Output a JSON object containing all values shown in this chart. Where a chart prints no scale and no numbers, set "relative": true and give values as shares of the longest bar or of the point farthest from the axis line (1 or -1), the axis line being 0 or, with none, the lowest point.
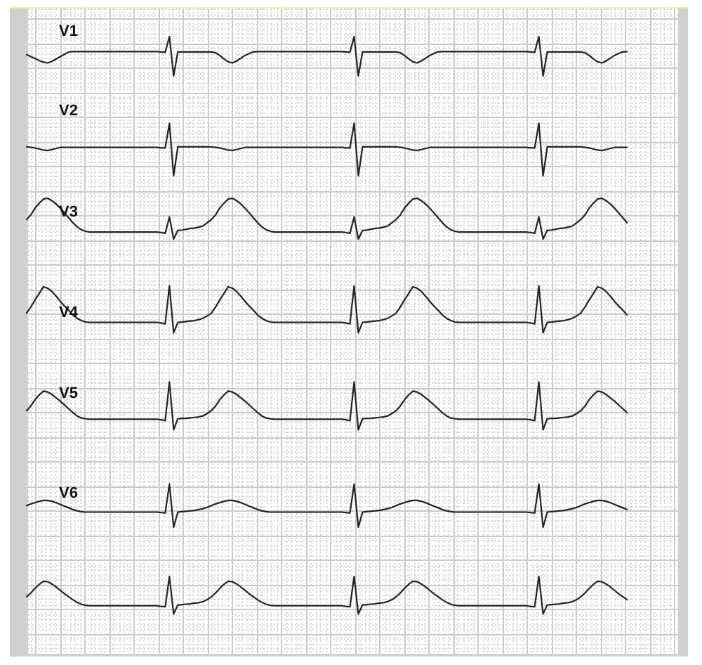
{
  "chart_data": [
    {
      "type": "line",
      "title": "V1",
      "relative": true,
      "grid": true,
      "categories": [
        null,
        null,
        null,
        null,
        null,
        null,
        null,
        null,
        null,
        null,
        null,
        null,
        null,
        null,
        null,
        null,
        null,
        null,
        null,
        null,
        null,
        null,
        null,
        null,
        null,
        null,
        null,
        null,
        null,
        null,
        null,
        null,
        null,
        null,
        null,
        null,
        null,
        null,
        null,
        null,
        null,
        null,
        null,
        null,
        null,
        null,
        null,
        null,
        null,
        null,
        null,
        null,
        null,
        null,
        null,
        null,
        null,
        null,
        null,
        null,
        null,
        null,
        null,
        null,
        null,
        null,
        null,
        null,
        null,
        null,
        null,
        null,
        null,
        null,
        null,
        null,
        null,
        null,
        null,
        null,
        null,
        null,
        null,
        null,
        null,
        null,
        null,
        null,
        null,
        null,
        null,
        null,
        null,
        null,
        null,
        null,
        null,
        null,
        null,
        null,
        null,
        null,
        null,
        null,
        null,
        null,
        null,
        null,
        null,
        null,
        null,
        null,
        null,
        null,
        null,
        null,
        null,
        null,
        null,
        null,
        null,
        null,
        null,
        null,
        null,
        null,
        null,
        null,
        null,
        null,
        null,
        null,
        null,
        null,
        null,
        null,
        null,
        null,
        null,
        null,
        null,
        null,
        null,
        null
      ],
      "series": [
        {
          "color": "#222222",
          "values": [
            0.54,
            0.49,
            0.44,
            0.39,
            0.35,
            0.33,
            0.37,
            0.43,
            0.49,
            0.55,
            0.61,
            0.62,
            0.62,
            0.62,
            0.62,
            0.62,
            0.62,
            0.62,
            0.62,
            0.62,
            0.62,
            0.62,
            0.62,
            0.62,
            0.62,
            0.62,
            0.62,
            0.62,
            0.62,
            0.62,
            0.62,
            0.62,
            0.61,
            0.6,
            1,
            0,
            0.61,
            0.61,
            0.61,
            0.61,
            0.61,
            0.61,
            0.61,
            0.61,
            0.61,
            0.59,
            0.52,
            0.43,
            0.36,
            0.33,
            0.38,
            0.45,
            0.52,
            0.57,
            0.61,
            0.62,
            0.62,
            0.62,
            0.62,
            0.62,
            0.62,
            0.62,
            0.62,
            0.62,
            0.62,
            0.62,
            0.62,
            0.62,
            0.62,
            0.62,
            0.62,
            0.62,
            0.62,
            0.62,
            0.62,
            0.62,
            0.61,
            0.6,
            1,
            0,
            0.61,
            0.61,
            0.61,
            0.61,
            0.61,
            0.61,
            0.61,
            0.61,
            0.61,
            0.59,
            0.52,
            0.43,
            0.36,
            0.33,
            0.38,
            0.45,
            0.52,
            0.57,
            0.61,
            0.62,
            0.62,
            0.62,
            0.62,
            0.62,
            0.62,
            0.62,
            0.62,
            0.62,
            0.62,
            0.62,
            0.62,
            0.62,
            0.62,
            0.62,
            0.62,
            0.62,
            0.62,
            0.62,
            0.62,
            0.62,
            0.61,
            0.6,
            1,
            0,
            0.61,
            0.61,
            0.61,
            0.61,
            0.61,
            0.61,
            0.61,
            0.61,
            0.61,
            0.59,
            0.52,
            0.43,
            0.36,
            0.33,
            0.38,
            0.45,
            0.52,
            0.57,
            0.61,
            0.62
          ]
        }
      ]
    },
    {
      "type": "line",
      "title": "V2",
      "relative": true,
      "grid": true,
      "categories": [
        null,
        null,
        null,
        null,
        null,
        null,
        null,
        null,
        null,
        null,
        null,
        null,
        null,
        null,
        null,
        null,
        null,
        null,
        null,
        null,
        null,
        null,
        null,
        null,
        null,
        null,
        null,
        null,
        null,
        null,
        null,
        null,
        null,
        null,
        null,
        null,
        null,
        null,
        null,
        null,
        null,
        null,
        null,
        null,
        null,
        null,
        null,
        null,
        null,
        null,
        null,
        null,
        null,
        null,
        null,
        null,
        null,
        null,
        null,
        null,
        null,
        null,
        null,
        null,
        null,
        null,
        null,
        null,
        null,
        null,
        null,
        null,
        null,
        null,
        null,
        null,
        null,
        null,
        null,
        null,
        null,
        null,
        null,
        null,
        null,
        null,
        null,
        null,
        null,
        null,
        null,
        null,
        null,
        null,
        null,
        null,
        null,
        null,
        null,
        null,
        null,
        null,
        null,
        null,
        null,
        null,
        null,
        null,
        null,
        null,
        null,
        null,
        null,
        null,
        null,
        null,
        null,
        null,
        null,
        null,
        null,
        null,
        null,
        null,
        null,
        null,
        null,
        null,
        null,
        null,
        null,
        null,
        null,
        null,
        null,
        null,
        null,
        null,
        null,
        null,
        null,
        null,
        null,
        null
      ],
      "series": [
        {
          "color": "#222222",
          "values": [
            0.55,
            0.54,
            0.53,
            0.51,
            0.49,
            0.48,
            0.5,
            0.52,
            0.54,
            0.54,
            0.54,
            0.54,
            0.54,
            0.54,
            0.54,
            0.54,
            0.54,
            0.54,
            0.54,
            0.54,
            0.54,
            0.54,
            0.54,
            0.54,
            0.54,
            0.54,
            0.54,
            0.54,
            0.54,
            0.54,
            0.54,
            0.54,
            0.53,
            0.53,
            1,
            0,
            0.55,
            0.55,
            0.55,
            0.55,
            0.55,
            0.55,
            0.55,
            0.55,
            0.55,
            0.54,
            0.53,
            0.51,
            0.49,
            0.48,
            0.5,
            0.52,
            0.54,
            0.54,
            0.54,
            0.54,
            0.54,
            0.54,
            0.54,
            0.54,
            0.54,
            0.54,
            0.54,
            0.54,
            0.54,
            0.54,
            0.54,
            0.54,
            0.54,
            0.54,
            0.54,
            0.54,
            0.54,
            0.54,
            0.54,
            0.54,
            0.53,
            0.53,
            1,
            0,
            0.55,
            0.55,
            0.55,
            0.55,
            0.55,
            0.55,
            0.55,
            0.55,
            0.55,
            0.54,
            0.53,
            0.51,
            0.49,
            0.48,
            0.5,
            0.52,
            0.54,
            0.54,
            0.54,
            0.54,
            0.54,
            0.54,
            0.54,
            0.54,
            0.54,
            0.54,
            0.54,
            0.54,
            0.54,
            0.54,
            0.54,
            0.54,
            0.54,
            0.54,
            0.54,
            0.54,
            0.54,
            0.54,
            0.54,
            0.54,
            0.53,
            0.53,
            1,
            0,
            0.55,
            0.55,
            0.55,
            0.55,
            0.55,
            0.55,
            0.55,
            0.55,
            0.55,
            0.54,
            0.53,
            0.51,
            0.49,
            0.48,
            0.5,
            0.52,
            0.54,
            0.54,
            0.54,
            0.54
          ]
        }
      ]
    },
    {
      "type": "line",
      "title": "V3",
      "relative": true,
      "grid": true,
      "categories": [
        null,
        null,
        null,
        null,
        null,
        null,
        null,
        null,
        null,
        null,
        null,
        null,
        null,
        null,
        null,
        null,
        null,
        null,
        null,
        null,
        null,
        null,
        null,
        null,
        null,
        null,
        null,
        null,
        null,
        null,
        null,
        null,
        null,
        null,
        null,
        null,
        null,
        null,
        null,
        null,
        null,
        null,
        null,
        null,
        null,
        null,
        null,
        null,
        null,
        null,
        null,
        null,
        null,
        null,
        null,
        null,
        null,
        null,
        null,
        null,
        null,
        null,
        null,
        null,
        null,
        null,
        null,
        null,
        null,
        null,
        null,
        null,
        null,
        null,
        null,
        null,
        null,
        null,
        null,
        null,
        null,
        null,
        null,
        null,
        null,
        null,
        null,
        null,
        null,
        null,
        null,
        null,
        null,
        null,
        null,
        null,
        null,
        null,
        null,
        null,
        null,
        null,
        null,
        null,
        null,
        null,
        null,
        null,
        null,
        null,
        null,
        null,
        null,
        null,
        null,
        null,
        null,
        null,
        null,
        null,
        null,
        null,
        null,
        null,
        null,
        null,
        null,
        null,
        null,
        null,
        null,
        null,
        null,
        null,
        null,
        null,
        null,
        null,
        null,
        null,
        null,
        null,
        null,
        null
      ],
      "series": [
        {
          "color": "#222222",
          "values": [
            0.48,
            0.59,
            0.76,
            0.88,
            0.98,
            1,
            0.94,
            0.86,
            0.76,
            0.64,
            0.52,
            0.4,
            0.3,
            0.23,
            0.19,
            0.17,
            0.17,
            0.17,
            0.17,
            0.17,
            0.17,
            0.17,
            0.17,
            0.17,
            0.17,
            0.17,
            0.17,
            0.17,
            0.17,
            0.17,
            0.17,
            0.17,
            0.16,
            0.14,
            0.54,
            0,
            0.21,
            0.22,
            0.24,
            0.26,
            0.27,
            0.29,
            0.32,
            0.4,
            0.48,
            0.59,
            0.76,
            0.88,
            0.98,
            1,
            0.94,
            0.86,
            0.76,
            0.64,
            0.52,
            0.4,
            0.3,
            0.23,
            0.19,
            0.17,
            0.17,
            0.17,
            0.17,
            0.17,
            0.17,
            0.17,
            0.17,
            0.17,
            0.17,
            0.17,
            0.17,
            0.17,
            0.17,
            0.17,
            0.17,
            0.17,
            0.16,
            0.14,
            0.54,
            0,
            0.21,
            0.22,
            0.24,
            0.26,
            0.27,
            0.29,
            0.32,
            0.4,
            0.48,
            0.59,
            0.76,
            0.88,
            0.98,
            1,
            0.94,
            0.86,
            0.76,
            0.64,
            0.52,
            0.4,
            0.3,
            0.23,
            0.19,
            0.17,
            0.17,
            0.17,
            0.17,
            0.17,
            0.17,
            0.17,
            0.17,
            0.17,
            0.17,
            0.17,
            0.17,
            0.17,
            0.17,
            0.17,
            0.17,
            0.17,
            0.16,
            0.14,
            0.54,
            0,
            0.21,
            0.22,
            0.24,
            0.26,
            0.27,
            0.29,
            0.32,
            0.4,
            0.48,
            0.59,
            0.76,
            0.88,
            0.98,
            1,
            0.94,
            0.86,
            0.76,
            0.64,
            0.52,
            0.4
          ]
        }
      ]
    },
    {
      "type": "line",
      "title": "V4",
      "relative": true,
      "grid": true,
      "categories": [
        null,
        null,
        null,
        null,
        null,
        null,
        null,
        null,
        null,
        null,
        null,
        null,
        null,
        null,
        null,
        null,
        null,
        null,
        null,
        null,
        null,
        null,
        null,
        null,
        null,
        null,
        null,
        null,
        null,
        null,
        null,
        null,
        null,
        null,
        null,
        null,
        null,
        null,
        null,
        null,
        null,
        null,
        null,
        null,
        null,
        null,
        null,
        null,
        null,
        null,
        null,
        null,
        null,
        null,
        null,
        null,
        null,
        null,
        null,
        null,
        null,
        null,
        null,
        null,
        null,
        null,
        null,
        null,
        null,
        null,
        null,
        null,
        null,
        null,
        null,
        null,
        null,
        null,
        null,
        null,
        null,
        null,
        null,
        null,
        null,
        null,
        null,
        null,
        null,
        null,
        null,
        null,
        null,
        null,
        null,
        null,
        null,
        null,
        null,
        null,
        null,
        null,
        null,
        null,
        null,
        null,
        null,
        null,
        null,
        null,
        null,
        null,
        null,
        null,
        null,
        null,
        null,
        null,
        null,
        null,
        null,
        null,
        null,
        null,
        null,
        null,
        null,
        null,
        null,
        null,
        null,
        null,
        null,
        null,
        null,
        null,
        null,
        null,
        null,
        null,
        null,
        null,
        null,
        null
      ],
      "series": [
        {
          "color": "#222222",
          "values": [
            0.42,
            0.55,
            0.7,
            0.84,
            0.98,
            0.95,
            0.88,
            0.78,
            0.67,
            0.57,
            0.48,
            0.38,
            0.31,
            0.26,
            0.23,
            0.22,
            0.22,
            0.22,
            0.22,
            0.22,
            0.22,
            0.22,
            0.22,
            0.22,
            0.22,
            0.22,
            0.22,
            0.22,
            0.22,
            0.22,
            0.22,
            0.22,
            0.21,
            0.19,
            1,
            0,
            0.22,
            0.23,
            0.24,
            0.25,
            0.26,
            0.28,
            0.31,
            0.36,
            0.42,
            0.55,
            0.7,
            0.84,
            0.98,
            0.95,
            0.88,
            0.78,
            0.67,
            0.57,
            0.48,
            0.38,
            0.31,
            0.26,
            0.23,
            0.22,
            0.22,
            0.22,
            0.22,
            0.22,
            0.22,
            0.22,
            0.22,
            0.22,
            0.22,
            0.22,
            0.22,
            0.22,
            0.22,
            0.22,
            0.22,
            0.22,
            0.21,
            0.19,
            1,
            0,
            0.22,
            0.23,
            0.24,
            0.25,
            0.26,
            0.28,
            0.31,
            0.36,
            0.42,
            0.55,
            0.7,
            0.84,
            0.98,
            0.95,
            0.88,
            0.78,
            0.67,
            0.57,
            0.48,
            0.38,
            0.31,
            0.26,
            0.23,
            0.22,
            0.22,
            0.22,
            0.22,
            0.22,
            0.22,
            0.22,
            0.22,
            0.22,
            0.22,
            0.22,
            0.22,
            0.22,
            0.22,
            0.22,
            0.22,
            0.22,
            0.21,
            0.19,
            1,
            0,
            0.22,
            0.23,
            0.24,
            0.25,
            0.26,
            0.28,
            0.31,
            0.36,
            0.42,
            0.55,
            0.7,
            0.84,
            0.98,
            0.95,
            0.88,
            0.78,
            0.67,
            0.57,
            0.48,
            0.38
          ]
        }
      ]
    },
    {
      "type": "line",
      "title": "V5",
      "relative": true,
      "grid": true,
      "categories": [
        null,
        null,
        null,
        null,
        null,
        null,
        null,
        null,
        null,
        null,
        null,
        null,
        null,
        null,
        null,
        null,
        null,
        null,
        null,
        null,
        null,
        null,
        null,
        null,
        null,
        null,
        null,
        null,
        null,
        null,
        null,
        null,
        null,
        null,
        null,
        null,
        null,
        null,
        null,
        null,
        null,
        null,
        null,
        null,
        null,
        null,
        null,
        null,
        null,
        null,
        null,
        null,
        null,
        null,
        null,
        null,
        null,
        null,
        null,
        null,
        null,
        null,
        null,
        null,
        null,
        null,
        null,
        null,
        null,
        null,
        null,
        null,
        null,
        null,
        null,
        null,
        null,
        null,
        null,
        null,
        null,
        null,
        null,
        null,
        null,
        null,
        null,
        null,
        null,
        null,
        null,
        null,
        null,
        null,
        null,
        null,
        null,
        null,
        null,
        null,
        null,
        null,
        null,
        null,
        null,
        null,
        null,
        null,
        null,
        null,
        null,
        null,
        null,
        null,
        null,
        null,
        null,
        null,
        null,
        null,
        null,
        null,
        null,
        null,
        null,
        null,
        null,
        null,
        null,
        null,
        null,
        null,
        null,
        null,
        null,
        null,
        null,
        null,
        null,
        null,
        null,
        null,
        null,
        null
      ],
      "series": [
        {
          "color": "#222222",
          "values": [
            0.4,
            0.5,
            0.63,
            0.73,
            0.81,
            0.79,
            0.74,
            0.67,
            0.6,
            0.52,
            0.44,
            0.36,
            0.29,
            0.25,
            0.23,
            0.22,
            0.22,
            0.22,
            0.22,
            0.22,
            0.22,
            0.22,
            0.22,
            0.22,
            0.22,
            0.22,
            0.22,
            0.22,
            0.22,
            0.22,
            0.22,
            0.22,
            0.21,
            0.19,
            1,
            0,
            0.23,
            0.24,
            0.24,
            0.25,
            0.26,
            0.27,
            0.29,
            0.34,
            0.4,
            0.5,
            0.63,
            0.73,
            0.81,
            0.79,
            0.74,
            0.67,
            0.6,
            0.52,
            0.44,
            0.36,
            0.29,
            0.25,
            0.23,
            0.22,
            0.22,
            0.22,
            0.22,
            0.22,
            0.22,
            0.22,
            0.22,
            0.22,
            0.22,
            0.22,
            0.22,
            0.22,
            0.22,
            0.22,
            0.22,
            0.22,
            0.21,
            0.19,
            1,
            0,
            0.23,
            0.24,
            0.24,
            0.25,
            0.26,
            0.27,
            0.29,
            0.34,
            0.4,
            0.5,
            0.63,
            0.73,
            0.81,
            0.79,
            0.74,
            0.67,
            0.6,
            0.52,
            0.44,
            0.36,
            0.29,
            0.25,
            0.23,
            0.22,
            0.22,
            0.22,
            0.22,
            0.22,
            0.22,
            0.22,
            0.22,
            0.22,
            0.22,
            0.22,
            0.22,
            0.22,
            0.22,
            0.22,
            0.22,
            0.22,
            0.21,
            0.19,
            1,
            0,
            0.23,
            0.24,
            0.24,
            0.25,
            0.26,
            0.27,
            0.29,
            0.34,
            0.4,
            0.5,
            0.63,
            0.73,
            0.81,
            0.79,
            0.74,
            0.67,
            0.6,
            0.52,
            0.44,
            0.36
          ]
        }
      ]
    },
    {
      "type": "line",
      "title": "V6",
      "relative": true,
      "grid": true,
      "categories": [
        null,
        null,
        null,
        null,
        null,
        null,
        null,
        null,
        null,
        null,
        null,
        null,
        null,
        null,
        null,
        null,
        null,
        null,
        null,
        null,
        null,
        null,
        null,
        null,
        null,
        null,
        null,
        null,
        null,
        null,
        null,
        null,
        null,
        null,
        null,
        null,
        null,
        null,
        null,
        null,
        null,
        null,
        null,
        null,
        null,
        null,
        null,
        null,
        null,
        null,
        null,
        null,
        null,
        null,
        null,
        null,
        null,
        null,
        null,
        null,
        null,
        null,
        null,
        null,
        null,
        null,
        null,
        null,
        null,
        null,
        null,
        null,
        null,
        null,
        null,
        null,
        null,
        null,
        null,
        null,
        null,
        null,
        null,
        null,
        null,
        null,
        null,
        null,
        null,
        null,
        null,
        null,
        null,
        null,
        null,
        null,
        null,
        null,
        null,
        null,
        null,
        null,
        null,
        null,
        null,
        null,
        null,
        null,
        null,
        null,
        null,
        null,
        null,
        null,
        null,
        null,
        null,
        null,
        null,
        null,
        null,
        null,
        null,
        null,
        null,
        null,
        null,
        null,
        null,
        null,
        null,
        null,
        null,
        null,
        null,
        null,
        null,
        null,
        null,
        null,
        null,
        null,
        null,
        null
      ],
      "series": [
        {
          "color": "#222222",
          "values": [
            0.5,
            0.54,
            0.57,
            0.6,
            0.62,
            0.62,
            0.6,
            0.57,
            0.53,
            0.49,
            0.45,
            0.41,
            0.38,
            0.36,
            0.35,
            0.35,
            0.35,
            0.35,
            0.35,
            0.35,
            0.35,
            0.35,
            0.35,
            0.35,
            0.35,
            0.35,
            0.35,
            0.35,
            0.35,
            0.35,
            0.35,
            0.35,
            0.34,
            0.33,
            1,
            0,
            0.35,
            0.36,
            0.37,
            0.38,
            0.39,
            0.41,
            0.43,
            0.46,
            0.5,
            0.54,
            0.57,
            0.6,
            0.62,
            0.62,
            0.6,
            0.57,
            0.53,
            0.49,
            0.45,
            0.41,
            0.38,
            0.36,
            0.35,
            0.35,
            0.35,
            0.35,
            0.35,
            0.35,
            0.35,
            0.35,
            0.35,
            0.35,
            0.35,
            0.35,
            0.35,
            0.35,
            0.35,
            0.35,
            0.35,
            0.35,
            0.34,
            0.33,
            1,
            0,
            0.35,
            0.36,
            0.37,
            0.38,
            0.39,
            0.41,
            0.43,
            0.46,
            0.5,
            0.54,
            0.57,
            0.6,
            0.62,
            0.62,
            0.6,
            0.57,
            0.53,
            0.49,
            0.45,
            0.41,
            0.38,
            0.36,
            0.35,
            0.35,
            0.35,
            0.35,
            0.35,
            0.35,
            0.35,
            0.35,
            0.35,
            0.35,
            0.35,
            0.35,
            0.35,
            0.35,
            0.35,
            0.35,
            0.35,
            0.35,
            0.34,
            0.33,
            1,
            0,
            0.35,
            0.36,
            0.37,
            0.38,
            0.39,
            0.41,
            0.43,
            0.46,
            0.5,
            0.54,
            0.57,
            0.6,
            0.62,
            0.62,
            0.6,
            0.57,
            0.53,
            0.49,
            0.45,
            0.41
          ]
        }
      ]
    },
    {
      "type": "line",
      "relative": true,
      "grid": true,
      "categories": [
        null,
        null,
        null,
        null,
        null,
        null,
        null,
        null,
        null,
        null,
        null,
        null,
        null,
        null,
        null,
        null,
        null,
        null,
        null,
        null,
        null,
        null,
        null,
        null,
        null,
        null,
        null,
        null,
        null,
        null,
        null,
        null,
        null,
        null,
        null,
        null,
        null,
        null,
        null,
        null,
        null,
        null,
        null,
        null,
        null,
        null,
        null,
        null,
        null,
        null,
        null,
        null,
        null,
        null,
        null,
        null,
        null,
        null,
        null,
        null,
        null,
        null,
        null,
        null,
        null,
        null,
        null,
        null,
        null,
        null,
        null,
        null,
        null,
        null,
        null,
        null,
        null,
        null,
        null,
        null,
        null,
        null,
        null,
        null,
        null,
        null,
        null,
        null,
        null,
        null,
        null,
        null,
        null,
        null,
        null,
        null,
        null,
        null,
        null,
        null,
        null,
        null,
        null,
        null,
        null,
        null,
        null,
        null,
        null,
        null,
        null,
        null,
        null,
        null,
        null,
        null,
        null,
        null,
        null,
        null,
        null,
        null,
        null,
        null,
        null,
        null,
        null,
        null,
        null,
        null,
        null,
        null,
        null,
        null,
        null,
        null,
        null,
        null,
        null,
        null,
        null,
        null,
        null,
        null
      ],
      "series": [
        {
          "color": "#222222",
          "values": [
            0.46,
            0.56,
            0.68,
            0.79,
            0.87,
            0.86,
            0.8,
            0.72,
            0.63,
            0.54,
            0.46,
            0.38,
            0.31,
            0.26,
            0.23,
            0.22,
            0.22,
            0.22,
            0.22,
            0.22,
            0.22,
            0.22,
            0.22,
            0.22,
            0.22,
            0.22,
            0.22,
            0.22,
            0.22,
            0.22,
            0.22,
            0.22,
            0.2,
            0.19,
            1,
            0,
            0.24,
            0.25,
            0.26,
            0.27,
            0.29,
            0.3,
            0.33,
            0.38,
            0.46,
            0.56,
            0.68,
            0.79,
            0.87,
            0.86,
            0.8,
            0.72,
            0.63,
            0.54,
            0.46,
            0.38,
            0.31,
            0.26,
            0.23,
            0.22,
            0.22,
            0.22,
            0.22,
            0.22,
            0.22,
            0.22,
            0.22,
            0.22,
            0.22,
            0.22,
            0.22,
            0.22,
            0.22,
            0.22,
            0.22,
            0.22,
            0.2,
            0.19,
            1,
            0,
            0.24,
            0.25,
            0.26,
            0.27,
            0.29,
            0.3,
            0.33,
            0.38,
            0.46,
            0.56,
            0.68,
            0.79,
            0.87,
            0.86,
            0.8,
            0.72,
            0.63,
            0.54,
            0.46,
            0.38,
            0.31,
            0.26,
            0.23,
            0.22,
            0.22,
            0.22,
            0.22,
            0.22,
            0.22,
            0.22,
            0.22,
            0.22,
            0.22,
            0.22,
            0.22,
            0.22,
            0.22,
            0.22,
            0.22,
            0.22,
            0.2,
            0.19,
            1,
            0,
            0.24,
            0.25,
            0.26,
            0.27,
            0.29,
            0.3,
            0.33,
            0.38,
            0.46,
            0.56,
            0.68,
            0.79,
            0.87,
            0.86,
            0.8,
            0.72,
            0.63,
            0.54,
            0.46,
            0.38
          ]
        }
      ]
    }
  ]
}
